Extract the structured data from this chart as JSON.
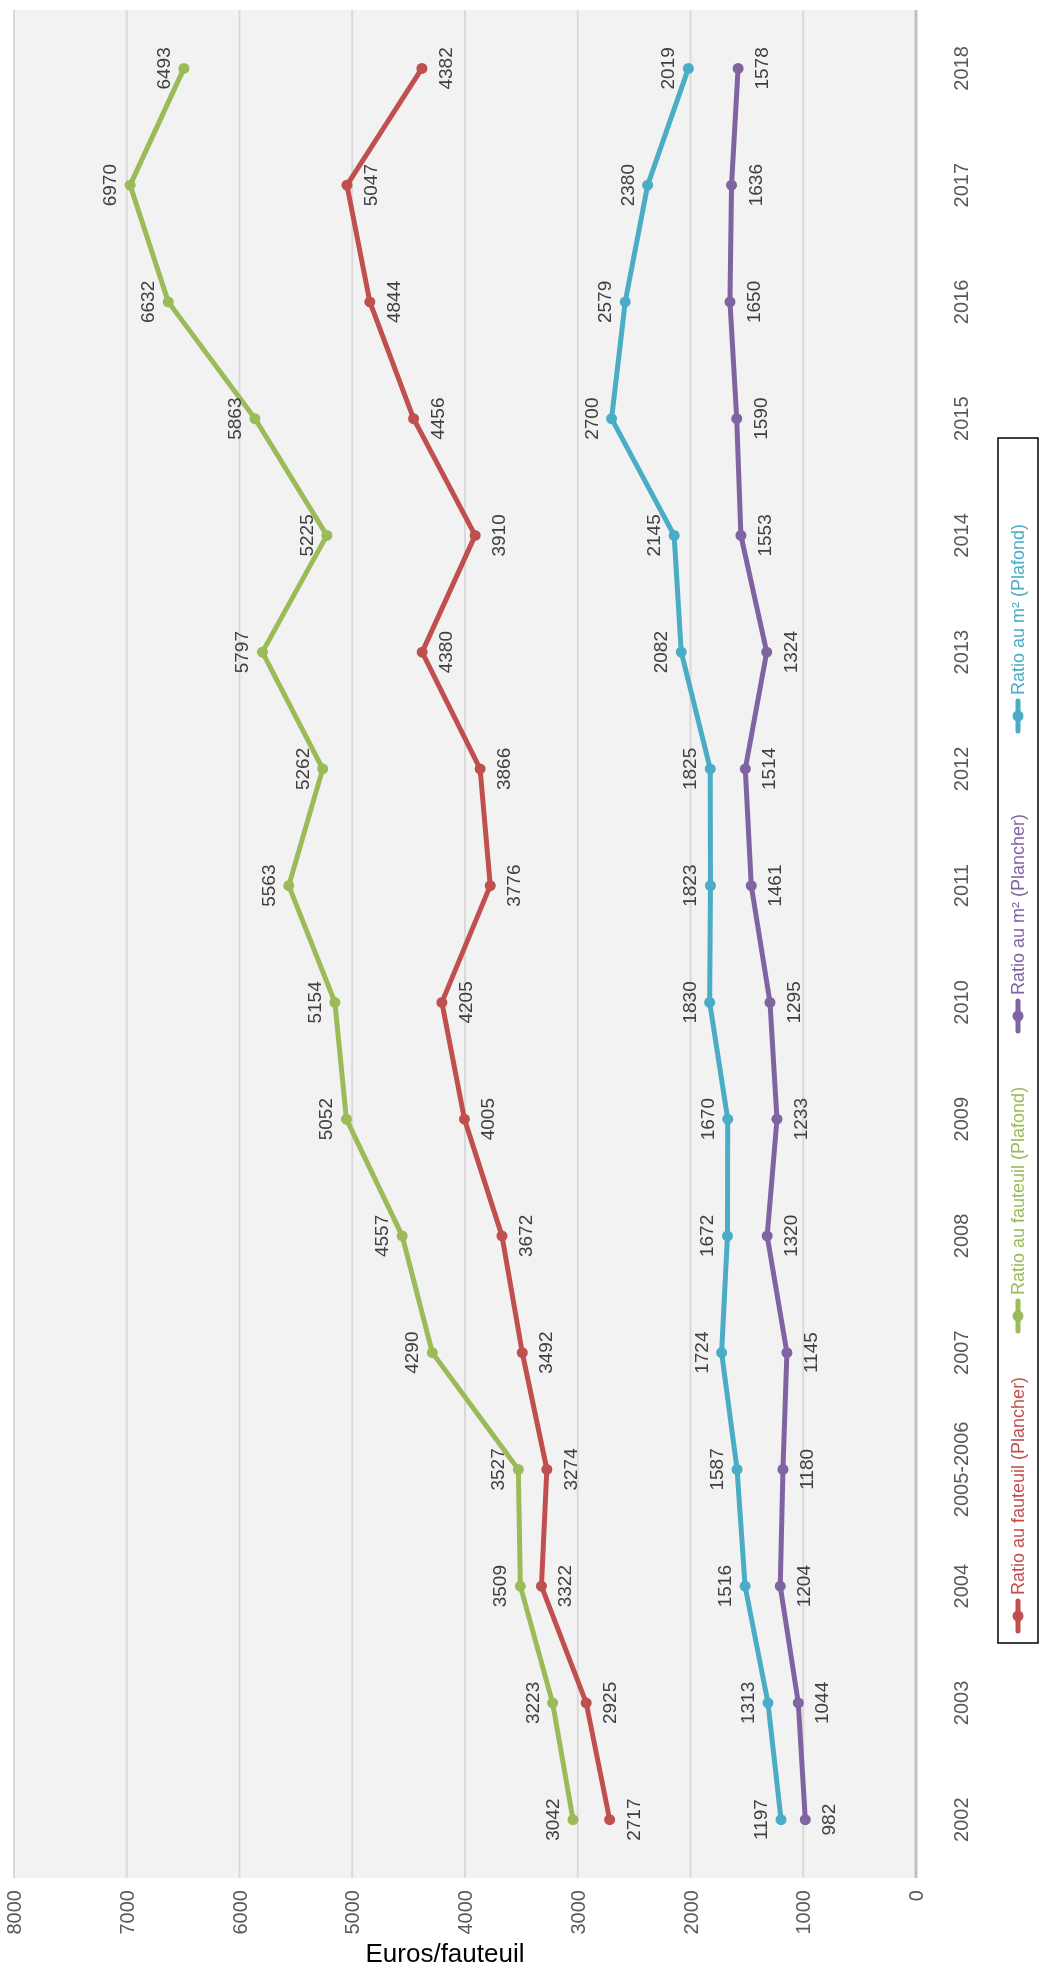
{
  "chart_data": {
    "type": "line",
    "orientation": "horizontal",
    "xlabel": "Euros/fauteuil",
    "categories": [
      "2018",
      "2017",
      "2016",
      "2015",
      "2014",
      "2013",
      "2012",
      "2011",
      "2010",
      "2009",
      "2008",
      "2007",
      "2005-2006",
      "2004",
      "2003",
      "2002"
    ],
    "series": [
      {
        "name": "Ratio au fauteuil (Plancher)",
        "color": "#c0504d",
        "values": [
          4382,
          5047,
          4844,
          4456,
          3910,
          4380,
          3866,
          3776,
          4205,
          4005,
          3672,
          3492,
          3274,
          3322,
          2925,
          2717
        ]
      },
      {
        "name": "Ratio au fauteuil (Plafond)",
        "color": "#9bbb59",
        "values": [
          6493,
          6970,
          6632,
          5863,
          5225,
          5797,
          5262,
          5563,
          5154,
          5052,
          4557,
          4290,
          3527,
          3509,
          3223,
          3042
        ]
      },
      {
        "name": "Ratio au m² (Plancher)",
        "color": "#8064a2",
        "values": [
          1578,
          1636,
          1650,
          1590,
          1553,
          1324,
          1514,
          1461,
          1295,
          1233,
          1320,
          1145,
          1180,
          1204,
          1044,
          982
        ]
      },
      {
        "name": "Ratio au m² (Plafond)",
        "color": "#4bacc6",
        "values": [
          2019,
          2380,
          2579,
          2700,
          2145,
          2082,
          1825,
          1823,
          1830,
          1670,
          1672,
          1724,
          1587,
          1516,
          1313,
          1197
        ]
      }
    ],
    "xlim": [
      8000,
      0
    ],
    "xticks": [
      8000,
      7000,
      6000,
      5000,
      4000,
      3000,
      2000,
      1000,
      0
    ],
    "grid": "x",
    "legend": "right",
    "marker": "circle",
    "line_style": "solid",
    "data_labels": true
  }
}
